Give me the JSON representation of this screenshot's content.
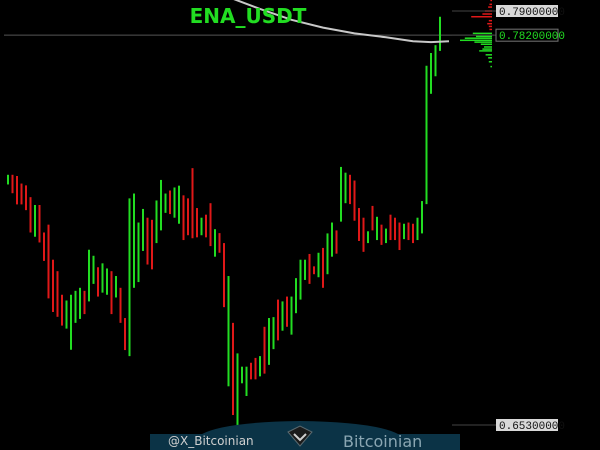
{
  "chart_data": {
    "type": "line",
    "title": "ENA_USDT",
    "y_ticks": [
      {
        "value": 0.79,
        "label": "0.79000000"
      },
      {
        "value": 0.782,
        "label": "0.78200000",
        "highlight": true
      },
      {
        "value": 0.653,
        "label": "0.65300000"
      }
    ],
    "current_price": 0.782,
    "grid": false,
    "colors": {
      "background": "#000000",
      "up": "#22dd22",
      "down": "#e01818",
      "moving_average": "#c8c8c8",
      "title": "#22dd22",
      "tick_text": "#111111",
      "tick_box": "#d8d8d8",
      "price_box": "#000000",
      "price_text": "#22dd22",
      "price_line": "#555555"
    },
    "bars": [
      {
        "high": 0.7358,
        "low": 0.7326,
        "up": true
      },
      {
        "high": 0.7358,
        "low": 0.7297,
        "up": false
      },
      {
        "high": 0.7354,
        "low": 0.726,
        "up": false
      },
      {
        "high": 0.7329,
        "low": 0.726,
        "up": false
      },
      {
        "high": 0.7323,
        "low": 0.7241,
        "up": false
      },
      {
        "high": 0.7284,
        "low": 0.7167,
        "up": false
      },
      {
        "high": 0.7258,
        "low": 0.7153,
        "up": true
      },
      {
        "high": 0.7258,
        "low": 0.7134,
        "up": false
      },
      {
        "high": 0.7167,
        "low": 0.7073,
        "up": false
      },
      {
        "high": 0.7193,
        "low": 0.6949,
        "up": false
      },
      {
        "high": 0.7077,
        "low": 0.6904,
        "up": false
      },
      {
        "high": 0.7039,
        "low": 0.6888,
        "up": false
      },
      {
        "high": 0.6961,
        "low": 0.6859,
        "up": false
      },
      {
        "high": 0.6942,
        "low": 0.6849,
        "up": true
      },
      {
        "high": 0.6961,
        "low": 0.6779,
        "up": true
      },
      {
        "high": 0.6974,
        "low": 0.6868,
        "up": true
      },
      {
        "high": 0.6984,
        "low": 0.6881,
        "up": true
      },
      {
        "high": 0.6974,
        "low": 0.6897,
        "up": false
      },
      {
        "high": 0.711,
        "low": 0.6939,
        "up": true
      },
      {
        "high": 0.709,
        "low": 0.6997,
        "up": true
      },
      {
        "high": 0.7052,
        "low": 0.6955,
        "up": false
      },
      {
        "high": 0.7065,
        "low": 0.6968,
        "up": true
      },
      {
        "high": 0.7048,
        "low": 0.6961,
        "up": true
      },
      {
        "high": 0.7039,
        "low": 0.6897,
        "up": false
      },
      {
        "high": 0.7023,
        "low": 0.6952,
        "up": true
      },
      {
        "high": 0.6984,
        "low": 0.6868,
        "up": false
      },
      {
        "high": 0.6884,
        "low": 0.6778,
        "up": false
      },
      {
        "high": 0.728,
        "low": 0.6758,
        "up": true
      },
      {
        "high": 0.7296,
        "low": 0.6984,
        "up": true
      },
      {
        "high": 0.72,
        "low": 0.7003,
        "up": true
      },
      {
        "high": 0.7245,
        "low": 0.7106,
        "up": true
      },
      {
        "high": 0.7216,
        "low": 0.7061,
        "up": false
      },
      {
        "high": 0.7209,
        "low": 0.7045,
        "up": false
      },
      {
        "high": 0.7273,
        "low": 0.7132,
        "up": true
      },
      {
        "high": 0.7341,
        "low": 0.7174,
        "up": true
      },
      {
        "high": 0.7296,
        "low": 0.7232,
        "up": true
      },
      {
        "high": 0.7306,
        "low": 0.7228,
        "up": false
      },
      {
        "high": 0.7316,
        "low": 0.7216,
        "up": true
      },
      {
        "high": 0.7322,
        "low": 0.7196,
        "up": true
      },
      {
        "high": 0.729,
        "low": 0.7142,
        "up": false
      },
      {
        "high": 0.728,
        "low": 0.7158,
        "up": false
      },
      {
        "high": 0.738,
        "low": 0.7148,
        "up": false
      },
      {
        "high": 0.7248,
        "low": 0.7151,
        "up": false
      },
      {
        "high": 0.7216,
        "low": 0.7158,
        "up": true
      },
      {
        "high": 0.7226,
        "low": 0.7151,
        "up": false
      },
      {
        "high": 0.7264,
        "low": 0.7122,
        "up": false
      },
      {
        "high": 0.7178,
        "low": 0.7087,
        "up": true
      },
      {
        "high": 0.7165,
        "low": 0.71,
        "up": false
      },
      {
        "high": 0.7132,
        "low": 0.692,
        "up": false
      },
      {
        "high": 0.7023,
        "low": 0.6658,
        "up": true
      },
      {
        "high": 0.6868,
        "low": 0.6563,
        "up": false
      },
      {
        "high": 0.6767,
        "low": 0.6517,
        "up": true
      },
      {
        "high": 0.6723,
        "low": 0.6668,
        "up": true
      },
      {
        "high": 0.6723,
        "low": 0.6626,
        "up": true
      },
      {
        "high": 0.6736,
        "low": 0.6681,
        "up": false
      },
      {
        "high": 0.6752,
        "low": 0.6681,
        "up": false
      },
      {
        "high": 0.6758,
        "low": 0.6691,
        "up": true
      },
      {
        "high": 0.6855,
        "low": 0.67,
        "up": false
      },
      {
        "high": 0.6884,
        "low": 0.6729,
        "up": true
      },
      {
        "high": 0.6887,
        "low": 0.6781,
        "up": true
      },
      {
        "high": 0.6945,
        "low": 0.681,
        "up": false
      },
      {
        "high": 0.6939,
        "low": 0.6842,
        "up": true
      },
      {
        "high": 0.6955,
        "low": 0.6855,
        "up": false
      },
      {
        "high": 0.6955,
        "low": 0.6829,
        "up": true
      },
      {
        "high": 0.7016,
        "low": 0.69,
        "up": true
      },
      {
        "high": 0.7077,
        "low": 0.6945,
        "up": true
      },
      {
        "high": 0.7077,
        "low": 0.701,
        "up": true
      },
      {
        "high": 0.7096,
        "low": 0.6997,
        "up": false
      },
      {
        "high": 0.7055,
        "low": 0.7029,
        "up": false
      },
      {
        "high": 0.71,
        "low": 0.7019,
        "up": true
      },
      {
        "high": 0.7116,
        "low": 0.6984,
        "up": false
      },
      {
        "high": 0.7164,
        "low": 0.7029,
        "up": true
      },
      {
        "high": 0.72,
        "low": 0.7087,
        "up": true
      },
      {
        "high": 0.7174,
        "low": 0.7097,
        "up": false
      },
      {
        "high": 0.7384,
        "low": 0.7203,
        "up": true
      },
      {
        "high": 0.7365,
        "low": 0.7264,
        "up": true
      },
      {
        "high": 0.7358,
        "low": 0.7261,
        "up": false
      },
      {
        "high": 0.7339,
        "low": 0.7206,
        "up": false
      },
      {
        "high": 0.7248,
        "low": 0.7139,
        "up": false
      },
      {
        "high": 0.7216,
        "low": 0.7103,
        "up": false
      },
      {
        "high": 0.7171,
        "low": 0.7132,
        "up": true
      },
      {
        "high": 0.7255,
        "low": 0.7174,
        "up": false
      },
      {
        "high": 0.7219,
        "low": 0.7142,
        "up": true
      },
      {
        "high": 0.7193,
        "low": 0.7126,
        "up": false
      },
      {
        "high": 0.718,
        "low": 0.7132,
        "up": true
      },
      {
        "high": 0.7226,
        "low": 0.7142,
        "up": false
      },
      {
        "high": 0.7216,
        "low": 0.7142,
        "up": false
      },
      {
        "high": 0.72,
        "low": 0.7109,
        "up": false
      },
      {
        "high": 0.7196,
        "low": 0.7145,
        "up": true
      },
      {
        "high": 0.72,
        "low": 0.7142,
        "up": false
      },
      {
        "high": 0.7196,
        "low": 0.7132,
        "up": false
      },
      {
        "high": 0.7216,
        "low": 0.7142,
        "up": true
      },
      {
        "high": 0.7271,
        "low": 0.7164,
        "up": true
      },
      {
        "high": 0.7719,
        "low": 0.7261,
        "up": true
      },
      {
        "high": 0.7761,
        "low": 0.7626,
        "up": true
      },
      {
        "high": 0.7787,
        "low": 0.7684,
        "up": true
      },
      {
        "high": 0.7881,
        "low": 0.7768,
        "up": true
      }
    ],
    "moving_average": [
      {
        "bar": 0,
        "value": 0.8108
      },
      {
        "bar": 7,
        "value": 0.8072
      },
      {
        "bar": 14,
        "value": 0.8042
      },
      {
        "bar": 21,
        "value": 0.8016
      },
      {
        "bar": 28,
        "value": 0.7994
      },
      {
        "bar": 35,
        "value": 0.7978
      },
      {
        "bar": 42,
        "value": 0.7965
      },
      {
        "bar": 49,
        "value": 0.7946
      },
      {
        "bar": 56,
        "value": 0.7907
      },
      {
        "bar": 63,
        "value": 0.7871
      },
      {
        "bar": 70,
        "value": 0.7845
      },
      {
        "bar": 77,
        "value": 0.7826
      },
      {
        "bar": 84,
        "value": 0.7813
      },
      {
        "bar": 90,
        "value": 0.78
      },
      {
        "bar": 94,
        "value": 0.7797
      },
      {
        "bar": 98,
        "value": 0.78
      }
    ],
    "volume_profile": [
      {
        "price": 0.7935,
        "size": 0.05,
        "up": false
      },
      {
        "price": 0.7922,
        "size": 0.08,
        "up": false
      },
      {
        "price": 0.7913,
        "size": 0.12,
        "up": false
      },
      {
        "price": 0.79,
        "size": 0.22,
        "up": false
      },
      {
        "price": 0.789,
        "size": 0.3,
        "up": false
      },
      {
        "price": 0.7881,
        "size": 0.65,
        "up": false
      },
      {
        "price": 0.7868,
        "size": 0.1,
        "up": false
      },
      {
        "price": 0.7858,
        "size": 0.15,
        "up": false
      },
      {
        "price": 0.7849,
        "size": 0.1,
        "up": false
      },
      {
        "price": 0.7839,
        "size": 0.08,
        "up": false
      },
      {
        "price": 0.7826,
        "size": 0.6,
        "up": true
      },
      {
        "price": 0.7816,
        "size": 0.5,
        "up": true
      },
      {
        "price": 0.781,
        "size": 0.85,
        "up": true
      },
      {
        "price": 0.7803,
        "size": 1.0,
        "up": true
      },
      {
        "price": 0.7797,
        "size": 0.55,
        "up": true
      },
      {
        "price": 0.779,
        "size": 0.35,
        "up": true
      },
      {
        "price": 0.7781,
        "size": 0.25,
        "up": true
      },
      {
        "price": 0.7774,
        "size": 0.3,
        "up": true
      },
      {
        "price": 0.7768,
        "size": 0.4,
        "up": true
      },
      {
        "price": 0.7755,
        "size": 0.2,
        "up": true
      },
      {
        "price": 0.7745,
        "size": 0.12,
        "up": true
      },
      {
        "price": 0.7732,
        "size": 0.1,
        "up": true
      },
      {
        "price": 0.7716,
        "size": 0.05,
        "up": true
      }
    ]
  },
  "watermark": {
    "handle": "@X_Bitcoinian",
    "brand": "Bitcoinian",
    "logo_icon": "bitcoinian-logo-icon"
  }
}
